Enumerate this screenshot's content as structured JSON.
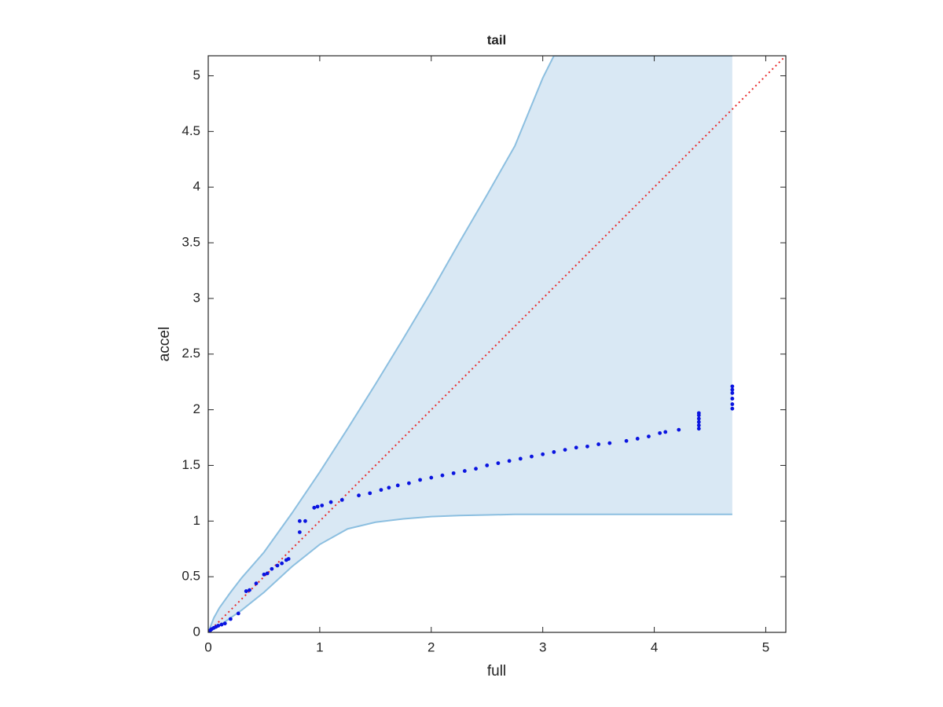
{
  "chart_data": {
    "type": "scatter",
    "title": "tail",
    "x_label": "full",
    "y_label": "accel",
    "xlim": [
      0,
      5.18
    ],
    "ylim": [
      0,
      5.18
    ],
    "xticks": [
      0,
      1,
      2,
      3,
      4,
      5
    ],
    "yticks": [
      0,
      0.5,
      1,
      1.5,
      2,
      2.5,
      3,
      3.5,
      4,
      4.5,
      5
    ],
    "grid": false,
    "band": {
      "color": "#d9e8f4",
      "line_color": "#8cbfe0",
      "x": [
        0,
        0.05,
        0.1,
        0.2,
        0.3,
        0.5,
        0.75,
        1,
        1.25,
        1.5,
        1.75,
        2,
        2.25,
        2.5,
        2.75,
        3,
        3.1,
        4.7
      ],
      "upper": [
        0,
        0.13,
        0.22,
        0.36,
        0.49,
        0.72,
        1.07,
        1.44,
        1.83,
        2.23,
        2.64,
        3.06,
        3.5,
        3.93,
        4.37,
        4.98,
        5.18,
        5.18
      ],
      "lower": [
        0,
        0.03,
        0.06,
        0.13,
        0.2,
        0.36,
        0.59,
        0.79,
        0.93,
        0.99,
        1.02,
        1.04,
        1.05,
        1.055,
        1.06,
        1.06,
        1.06,
        1.06
      ]
    },
    "reference_line": {
      "color": "#e8292b",
      "x": [
        0,
        5.18
      ],
      "y": [
        0,
        5.18
      ]
    },
    "series": [
      {
        "color": "#0a14e0",
        "x": [
          0,
          0.01,
          0.02,
          0.03,
          0.05,
          0.07,
          0.09,
          0.12,
          0.15,
          0.2,
          0.27,
          0.34,
          0.37,
          0.43,
          0.5,
          0.53,
          0.57,
          0.62,
          0.66,
          0.7,
          0.72,
          0.82,
          0.82,
          0.87,
          0.95,
          0.98,
          1.02,
          1.1,
          1.2,
          1.35,
          1.45,
          1.55,
          1.62,
          1.7,
          1.8,
          1.9,
          2.0,
          2.1,
          2.2,
          2.3,
          2.4,
          2.5,
          2.6,
          2.7,
          2.8,
          2.9,
          3.0,
          3.1,
          3.2,
          3.3,
          3.4,
          3.5,
          3.6,
          3.75,
          3.85,
          3.95,
          4.05,
          4.1,
          4.22,
          4.4,
          4.4,
          4.4,
          4.4,
          4.4,
          4.4,
          4.7,
          4.7,
          4.7,
          4.7,
          4.7,
          4.7
        ],
        "values": [
          0,
          0.01,
          0.02,
          0.03,
          0.04,
          0.05,
          0.06,
          0.07,
          0.08,
          0.12,
          0.17,
          0.37,
          0.38,
          0.44,
          0.52,
          0.53,
          0.57,
          0.6,
          0.62,
          0.65,
          0.66,
          0.9,
          1.0,
          1.0,
          1.12,
          1.13,
          1.14,
          1.17,
          1.19,
          1.23,
          1.25,
          1.28,
          1.3,
          1.32,
          1.34,
          1.37,
          1.39,
          1.41,
          1.43,
          1.45,
          1.47,
          1.5,
          1.52,
          1.54,
          1.56,
          1.58,
          1.6,
          1.62,
          1.64,
          1.66,
          1.67,
          1.69,
          1.7,
          1.72,
          1.74,
          1.76,
          1.79,
          1.8,
          1.82,
          1.83,
          1.86,
          1.89,
          1.92,
          1.95,
          1.97,
          2.01,
          2.05,
          2.1,
          2.15,
          2.18,
          2.21
        ]
      }
    ]
  }
}
